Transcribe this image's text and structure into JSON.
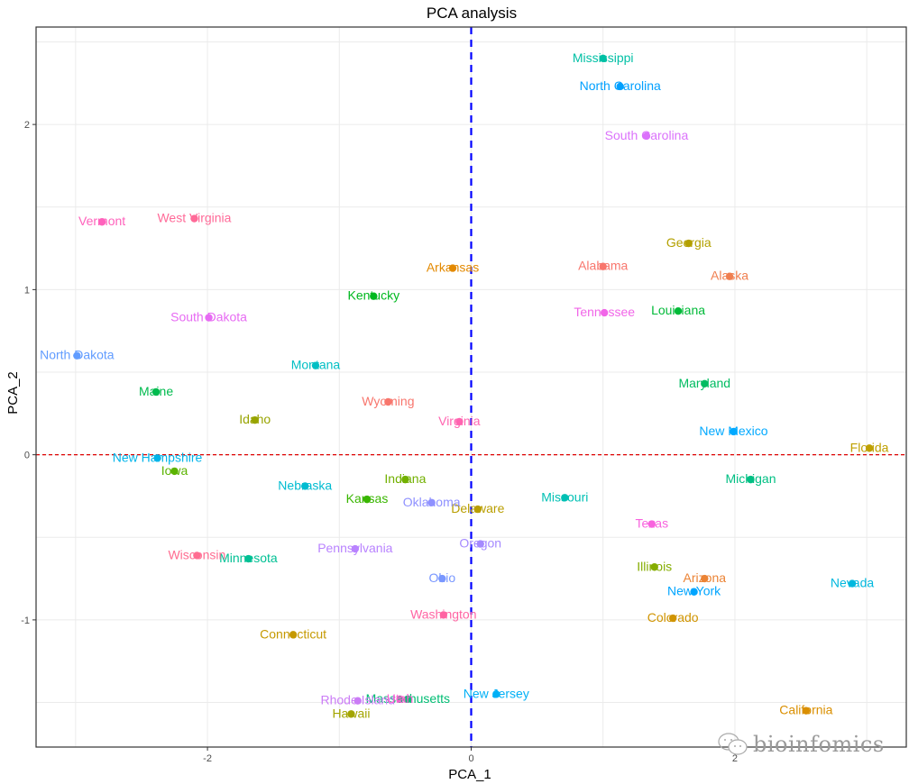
{
  "chart_data": {
    "type": "scatter",
    "title": "PCA analysis",
    "xlabel": "PCA_1",
    "ylabel": "PCA_2",
    "xlim": [
      -3.3,
      3.3
    ],
    "ylim": [
      -1.77,
      2.59
    ],
    "xticks": [
      -2,
      0,
      2
    ],
    "yticks": [
      -1,
      0,
      1,
      2
    ],
    "grid": true,
    "legend": "none",
    "reference_lines": [
      {
        "orientation": "vertical",
        "value": 0,
        "color": "#0000ff",
        "style": "dashed"
      },
      {
        "orientation": "horizontal",
        "value": 0,
        "color": "#dd0000",
        "style": "dashed"
      }
    ],
    "points": [
      {
        "label": "Alabama",
        "x": 1.0,
        "y": 1.14,
        "color": "#F8766D"
      },
      {
        "label": "Alaska",
        "x": 1.96,
        "y": 1.08,
        "color": "#F07E4F"
      },
      {
        "label": "Arizona",
        "x": 1.77,
        "y": -0.75,
        "color": "#EB8335"
      },
      {
        "label": "Arkansas",
        "x": -0.14,
        "y": 1.13,
        "color": "#E38900"
      },
      {
        "label": "California",
        "x": 2.54,
        "y": -1.55,
        "color": "#DA8F00"
      },
      {
        "label": "Colorado",
        "x": 1.53,
        "y": -0.99,
        "color": "#D09400"
      },
      {
        "label": "Connecticut",
        "x": -1.35,
        "y": -1.09,
        "color": "#C59900"
      },
      {
        "label": "Delaware",
        "x": 0.05,
        "y": -0.33,
        "color": "#B99E00"
      },
      {
        "label": "Florida",
        "x": 3.02,
        "y": 0.04,
        "color": "#BFA000"
      },
      {
        "label": "Georgia",
        "x": 1.65,
        "y": 1.28,
        "color": "#B3A000"
      },
      {
        "label": "Hawaii",
        "x": -0.91,
        "y": -1.57,
        "color": "#A3A500"
      },
      {
        "label": "Idaho",
        "x": -1.64,
        "y": 0.21,
        "color": "#98A400"
      },
      {
        "label": "Illinois",
        "x": 1.39,
        "y": -0.68,
        "color": "#85AD00"
      },
      {
        "label": "Indiana",
        "x": -0.5,
        "y": -0.15,
        "color": "#72B000"
      },
      {
        "label": "Iowa",
        "x": -2.25,
        "y": -0.1,
        "color": "#5BB300"
      },
      {
        "label": "Kansas",
        "x": -0.79,
        "y": -0.27,
        "color": "#39B600"
      },
      {
        "label": "Kentucky",
        "x": -0.74,
        "y": 0.96,
        "color": "#00B81F"
      },
      {
        "label": "Louisiana",
        "x": 1.57,
        "y": 0.87,
        "color": "#00BA38"
      },
      {
        "label": "Maine",
        "x": -2.39,
        "y": 0.38,
        "color": "#00BB4E"
      },
      {
        "label": "Maryland",
        "x": 1.77,
        "y": 0.43,
        "color": "#00BC61"
      },
      {
        "label": "Massachusetts",
        "x": -0.48,
        "y": -1.48,
        "color": "#00BD73"
      },
      {
        "label": "Michigan",
        "x": 2.12,
        "y": -0.15,
        "color": "#00BF83"
      },
      {
        "label": "Minnesota",
        "x": -1.69,
        "y": -0.63,
        "color": "#00C094"
      },
      {
        "label": "Mississippi",
        "x": 1.0,
        "y": 2.4,
        "color": "#00C0A5"
      },
      {
        "label": "Missouri",
        "x": 0.71,
        "y": -0.26,
        "color": "#00C0B4"
      },
      {
        "label": "Montana",
        "x": -1.18,
        "y": 0.54,
        "color": "#00BFC4"
      },
      {
        "label": "Nebraska",
        "x": -1.26,
        "y": -0.19,
        "color": "#00BCD1"
      },
      {
        "label": "Nevada",
        "x": 2.89,
        "y": -0.78,
        "color": "#00B8DE"
      },
      {
        "label": "New Hampshire",
        "x": -2.38,
        "y": -0.02,
        "color": "#00B4EA"
      },
      {
        "label": "New Jersey",
        "x": 0.19,
        "y": -1.45,
        "color": "#00B0F6"
      },
      {
        "label": "New Mexico",
        "x": 1.99,
        "y": 0.14,
        "color": "#00A9FF"
      },
      {
        "label": "New York",
        "x": 1.69,
        "y": -0.83,
        "color": "#00A5FF"
      },
      {
        "label": "North Carolina",
        "x": 1.13,
        "y": 2.23,
        "color": "#00A0FF"
      },
      {
        "label": "North Dakota",
        "x": -2.99,
        "y": 0.6,
        "color": "#619CFF"
      },
      {
        "label": "Ohio",
        "x": -0.22,
        "y": -0.75,
        "color": "#7997FF"
      },
      {
        "label": "Oklahoma",
        "x": -0.3,
        "y": -0.29,
        "color": "#8F91FF"
      },
      {
        "label": "Oregon",
        "x": 0.07,
        "y": -0.54,
        "color": "#A58AFF"
      },
      {
        "label": "Pennsylvania",
        "x": -0.88,
        "y": -0.57,
        "color": "#B983FF"
      },
      {
        "label": "Rhode Island",
        "x": -0.86,
        "y": -1.49,
        "color": "#CB7CF6"
      },
      {
        "label": "South Carolina",
        "x": 1.33,
        "y": 1.93,
        "color": "#DB72FB"
      },
      {
        "label": "South Dakota",
        "x": -1.99,
        "y": 0.83,
        "color": "#E76BF3"
      },
      {
        "label": "Tennessee",
        "x": 1.01,
        "y": 0.86,
        "color": "#F166E8"
      },
      {
        "label": "Texas",
        "x": 1.37,
        "y": -0.42,
        "color": "#F862DE"
      },
      {
        "label": "Utah",
        "x": -0.54,
        "y": -1.48,
        "color": "#FD61D1"
      },
      {
        "label": "Vermont",
        "x": -2.8,
        "y": 1.41,
        "color": "#FF62BC"
      },
      {
        "label": "Virginia",
        "x": -0.09,
        "y": 0.2,
        "color": "#FF64B0"
      },
      {
        "label": "Washington",
        "x": -0.21,
        "y": -0.97,
        "color": "#FF65A3"
      },
      {
        "label": "West Virginia",
        "x": -2.1,
        "y": 1.43,
        "color": "#FF6A98"
      },
      {
        "label": "Wisconsin",
        "x": -2.08,
        "y": -0.61,
        "color": "#FF6C91"
      },
      {
        "label": "Wyoming",
        "x": -0.63,
        "y": 0.32,
        "color": "#F8766D"
      }
    ]
  },
  "watermark": {
    "text": "bioinfomics",
    "icon": "wechat-icon"
  }
}
